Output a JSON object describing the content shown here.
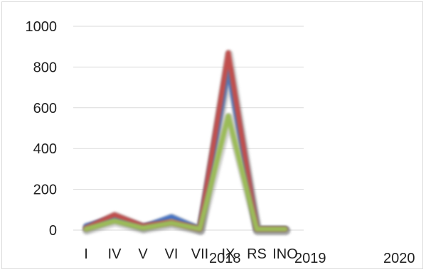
{
  "chart_data": {
    "type": "line",
    "categories": [
      "I",
      "IV",
      "V",
      "VI",
      "VII",
      "IX",
      "RS",
      "INO"
    ],
    "series": [
      {
        "name": "2018",
        "color": "#4472c4",
        "values": [
          20,
          60,
          15,
          65,
          5,
          790,
          5,
          5
        ]
      },
      {
        "name": "2019",
        "color": "#c0504d",
        "values": [
          10,
          75,
          20,
          40,
          5,
          870,
          5,
          5
        ]
      },
      {
        "name": "2020",
        "color": "#9bbb59",
        "values": [
          5,
          45,
          10,
          35,
          5,
          560,
          5,
          5
        ]
      }
    ],
    "y_ticks": [
      "0",
      "200",
      "400",
      "600",
      "800",
      "1000"
    ],
    "ylim": [
      0,
      1000
    ],
    "grid": true,
    "legend": "bottom"
  }
}
